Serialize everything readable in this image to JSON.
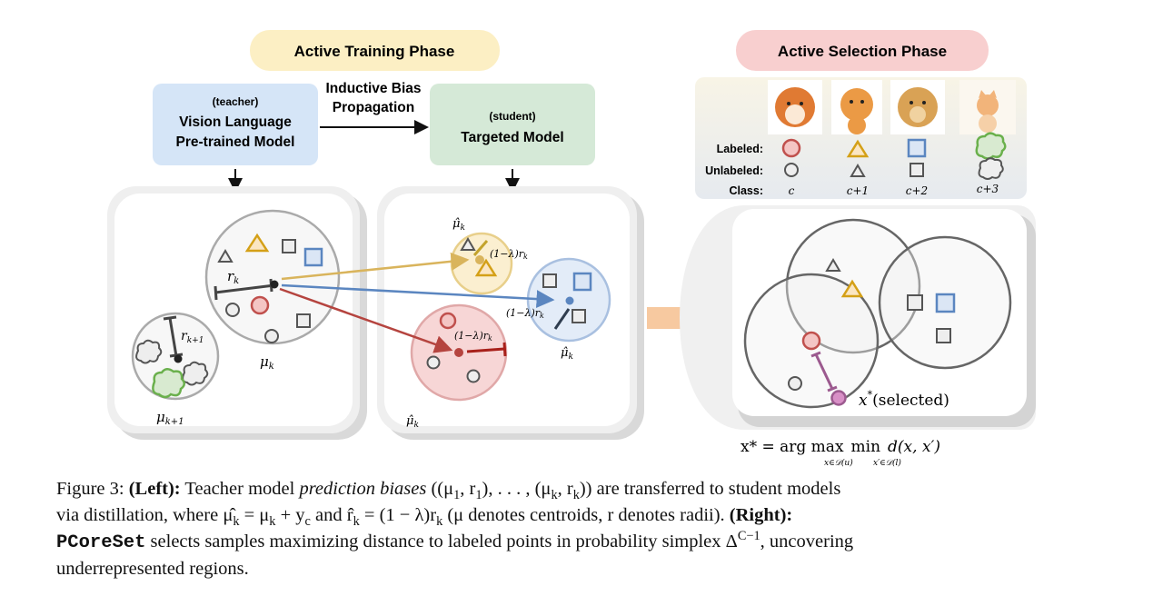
{
  "training_phase": {
    "title": "Active Training Phase",
    "color": "#fcefc4",
    "teacher": {
      "role": "(teacher)",
      "line1": "Vision Language",
      "line2": "Pre-trained Model",
      "color": "#d5e5f7"
    },
    "propagation": {
      "line1": "Inductive Bias",
      "line2": "Propagation"
    },
    "student": {
      "role": "(student)",
      "line1": "Targeted Model",
      "color": "#d5e9d7"
    },
    "labels": {
      "r_k": "r",
      "r_k_sub": "k",
      "r_k1": "r",
      "r_k1_sub": "k+1",
      "mu_k": "μ",
      "mu_k_sub": "k",
      "mu_k1": "μ",
      "mu_k1_sub": "k+1",
      "mu_hat": "μ̂",
      "mu_hat_sub": "k",
      "shrunk": "(1−λ)r",
      "shrunk_sub": "k"
    }
  },
  "selection_phase": {
    "title": "Active Selection Phase",
    "color": "#f8cfcf",
    "legend": {
      "labeled": "Labeled:",
      "unlabeled": "Unlabeled:",
      "class": "Class:",
      "classes": [
        "c",
        "c+1",
        "c+2",
        "c+3"
      ],
      "images": [
        "shiba-dog",
        "pomeranian-dog",
        "golden-retriever-dog",
        "kitten"
      ]
    },
    "selected_label": "x",
    "selected_sup": "*",
    "selected_text": "(selected)",
    "formula": {
      "lhs": "x* = arg max",
      "min": "min",
      "rhs": "d(x, x′)",
      "sub1": "x∈𝒟(u)",
      "sub2": "x′∈𝒟(l)"
    }
  },
  "colors": {
    "red": "#c0504d",
    "yellow": "#d4a017",
    "blue": "#5b86c0",
    "green": "#6ab04c",
    "gray": "#555555",
    "purple": "#9c5a8f",
    "arrow_orange": "#f6c08f"
  },
  "caption": {
    "l1": [
      "Figure 3: ",
      "(Left):",
      " Teacher model ",
      "prediction biases",
      " ((μ",
      "1",
      ", r",
      "1",
      "), . . . , (μ",
      "k",
      ", r",
      "k",
      ")) are transferred to student models"
    ],
    "l2": [
      "via distillation, where μ̂",
      "k",
      " = μ",
      "k",
      " + y",
      "c",
      " and r̂",
      "k",
      " = (1 − λ)r",
      "k",
      " (μ denotes centroids, r denotes radii). ",
      "(Right):"
    ],
    "l3": [
      "PCoreSet",
      " selects samples maximizing distance to labeled points in probability simplex Δ",
      "C−1",
      ", uncovering"
    ],
    "l4": "underrepresented regions."
  }
}
